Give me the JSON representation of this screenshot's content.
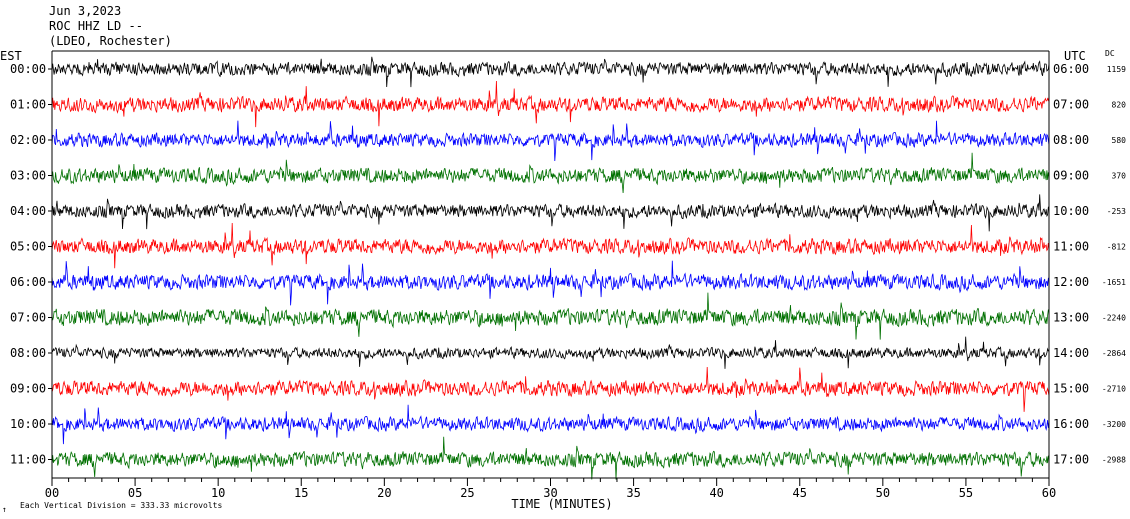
{
  "header": {
    "date": "Jun 3,2023",
    "station": "ROC HHZ LD --",
    "network": "(LDEO, Rochester)"
  },
  "left_axis_label": "EST",
  "right_axis_label": "UTC",
  "dc_label": "DC",
  "footer": {
    "scale_mark": "↑",
    "scale_text": "Each Vertical Division =  333.33 microvolts"
  },
  "colors": {
    "trace_cycle": [
      "#000000",
      "#ff0000",
      "#0000ff",
      "#007000"
    ],
    "axis": "#000000",
    "background": "#ffffff"
  },
  "chart_data": {
    "type": "line",
    "title": "Jun 3,2023",
    "xlabel": "TIME (MINUTES)",
    "ylabel": "",
    "xlim": [
      0,
      60
    ],
    "x_ticks": [
      "00",
      "05",
      "10",
      "15",
      "20",
      "25",
      "30",
      "35",
      "40",
      "45",
      "50",
      "55",
      "60"
    ],
    "grid": false,
    "rows": [
      {
        "est": "00:00",
        "utc": "06:00",
        "dc": "1159",
        "color": "#000000",
        "amplitude": 0.9
      },
      {
        "est": "01:00",
        "utc": "07:00",
        "dc": "820",
        "color": "#ff0000",
        "amplitude": 1.0
      },
      {
        "est": "02:00",
        "utc": "08:00",
        "dc": "580",
        "color": "#0000ff",
        "amplitude": 0.9
      },
      {
        "est": "03:00",
        "utc": "09:00",
        "dc": "370",
        "color": "#007000",
        "amplitude": 1.0
      },
      {
        "est": "04:00",
        "utc": "10:00",
        "dc": "-253",
        "color": "#000000",
        "amplitude": 0.9
      },
      {
        "est": "05:00",
        "utc": "11:00",
        "dc": "-812",
        "color": "#ff0000",
        "amplitude": 1.0
      },
      {
        "est": "06:00",
        "utc": "12:00",
        "dc": "-1651",
        "color": "#0000ff",
        "amplitude": 1.0
      },
      {
        "est": "07:00",
        "utc": "13:00",
        "dc": "-2240",
        "color": "#007000",
        "amplitude": 1.1
      },
      {
        "est": "08:00",
        "utc": "14:00",
        "dc": "-2864",
        "color": "#000000",
        "amplitude": 0.7
      },
      {
        "est": "09:00",
        "utc": "15:00",
        "dc": "-2710",
        "color": "#ff0000",
        "amplitude": 1.0
      },
      {
        "est": "10:00",
        "utc": "16:00",
        "dc": "-3200",
        "color": "#0000ff",
        "amplitude": 0.9
      },
      {
        "est": "11:00",
        "utc": "17:00",
        "dc": "-2988",
        "color": "#007000",
        "amplitude": 1.0
      }
    ]
  }
}
